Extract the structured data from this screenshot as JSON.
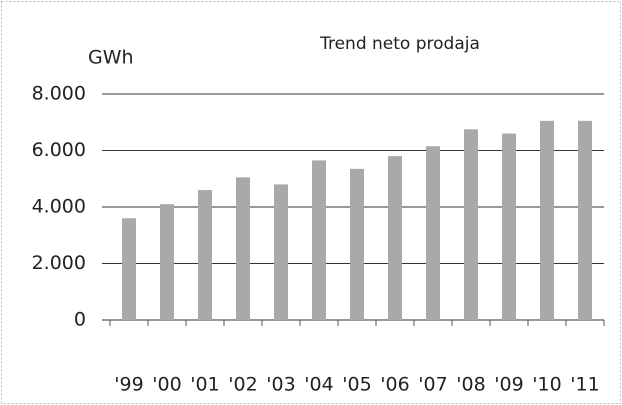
{
  "chart_data": {
    "type": "bar",
    "title": "Trend neto prodaja",
    "y_label": "GWh",
    "categories": [
      "'99",
      "'00",
      "'01",
      "'02",
      "'03",
      "'04",
      "'05",
      "'06",
      "'07",
      "'08",
      "'09",
      "'10",
      "'11"
    ],
    "values": [
      3600,
      4100,
      4600,
      5050,
      4800,
      5650,
      5350,
      5800,
      6150,
      6750,
      6600,
      7050,
      7050
    ],
    "color": "#a9a9a9",
    "ylim": [
      0,
      8000
    ],
    "yticks": [
      0,
      {
        "value": 2000,
        "label": "2.000"
      },
      {
        "value": 4000,
        "label": "4.000"
      },
      {
        "value": 6000,
        "label": "6.000"
      },
      {
        "value": 8000,
        "label": "8.000"
      }
    ],
    "grid": true
  }
}
